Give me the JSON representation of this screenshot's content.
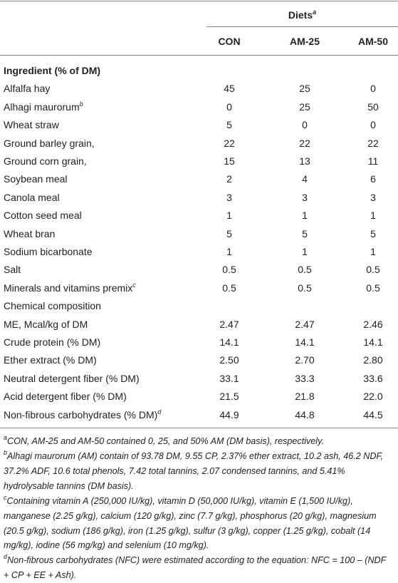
{
  "table": {
    "header": {
      "group": "Diets",
      "group_note": "a",
      "columns": [
        "CON",
        "AM-25",
        "AM-50"
      ]
    },
    "rows": [
      {
        "label": "Ingredient (% of DM)",
        "section": true,
        "bold": true
      },
      {
        "label": "Alfalfa hay",
        "values": [
          "45",
          "25",
          "0"
        ]
      },
      {
        "label": "Alhagi maurorum",
        "note": "b",
        "values": [
          "0",
          "25",
          "50"
        ]
      },
      {
        "label": "Wheat straw",
        "values": [
          "5",
          "0",
          "0"
        ]
      },
      {
        "label": "Ground barley grain,",
        "values": [
          "22",
          "22",
          "22"
        ]
      },
      {
        "label": "Ground corn grain,",
        "values": [
          "15",
          "13",
          "11"
        ]
      },
      {
        "label": "Soybean meal",
        "values": [
          "2",
          "4",
          "6"
        ]
      },
      {
        "label": "Canola meal",
        "values": [
          "3",
          "3",
          "3"
        ]
      },
      {
        "label": "Cotton seed meal",
        "values": [
          "1",
          "1",
          "1"
        ]
      },
      {
        "label": "Wheat bran",
        "values": [
          "5",
          "5",
          "5"
        ]
      },
      {
        "label": "Sodium bicarbonate",
        "values": [
          "1",
          "1",
          "1"
        ]
      },
      {
        "label": "Salt",
        "values": [
          "0.5",
          "0.5",
          "0.5"
        ]
      },
      {
        "label": "Minerals and vitamins premix",
        "note": "c",
        "values": [
          "0.5",
          "0.5",
          "0.5"
        ]
      },
      {
        "label": "Chemical composition",
        "section": true
      },
      {
        "label": "ME, Mcal/kg of DM",
        "values": [
          "2.47",
          "2.47",
          "2.46"
        ]
      },
      {
        "label": "Crude protein (% DM)",
        "values": [
          "14.1",
          "14.1",
          "14.1"
        ]
      },
      {
        "label": "Ether extract (% DM)",
        "values": [
          "2.50",
          "2.70",
          "2.80"
        ]
      },
      {
        "label": "Neutral detergent fiber (% DM)",
        "values": [
          "33.1",
          "33.3",
          "33.6"
        ]
      },
      {
        "label": "Acid detergent fiber (% DM)",
        "values": [
          "21.5",
          "21.8",
          "22.0"
        ]
      },
      {
        "label": "Non-fibrous carbohydrates (% DM)",
        "note": "d",
        "values": [
          "44.9",
          "44.8",
          "44.5"
        ]
      }
    ],
    "footnotes": [
      {
        "mark": "a",
        "text": "CON, AM-25 and AM-50 contained 0, 25, and 50% AM (DM basis), respectively."
      },
      {
        "mark": "b",
        "text": "Alhagi maurorum (AM) contain of 93.78 DM, 9.55 CP, 2.37% ether extract, 10.2 ash, 46.2 NDF, 37.2% ADF, 10.6 total phenols, 7.42 total tannins, 2.07 condensed tannins, and 5.41% hydrolysable tannins (DM basis)."
      },
      {
        "mark": "c",
        "text": "Containing vitamin A (250,000 IU/kg), vitamin D (50,000 IU/kg), vitamin E (1,500 IU/kg), manganese (2.25 g/kg), calcium (120 g/kg), zinc (7.7 g/kg), phosphorus (20 g/kg), magnesium (20.5 g/kg), sodium (186 g/kg), iron (1.25 g/kg), sulfur (3 g/kg), copper (1.25 g/kg), cobalt (14 mg/kg), iodine (56 mg/kg) and selenium (10 mg/kg)."
      },
      {
        "mark": "d",
        "text": "Non-fibrous carbohydrates (NFC) were estimated according to the equation: NFC = 100 – (NDF + CP + EE + Ash)."
      }
    ]
  }
}
